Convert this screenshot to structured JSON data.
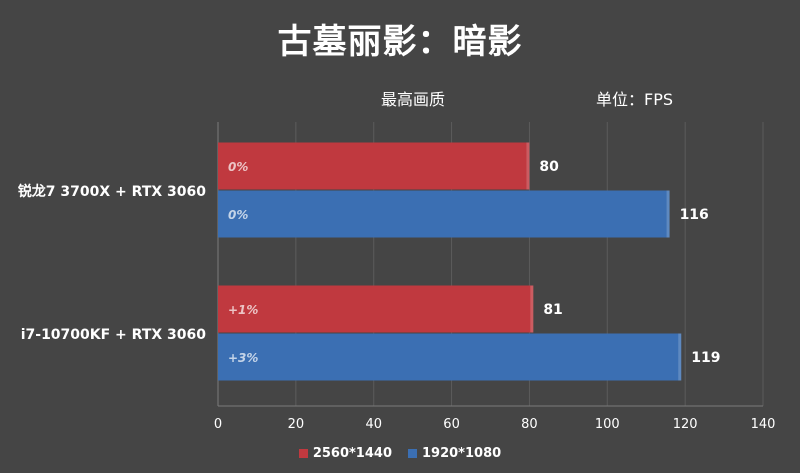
{
  "chart_data": {
    "type": "bar",
    "orientation": "horizontal",
    "title": "古墓丽影：暗影",
    "subtitle_left": "最高画质",
    "subtitle_right": "单位：FPS",
    "categories": [
      "锐龙7 3700X + RTX 3060",
      "i7-10700KF + RTX 3060"
    ],
    "series": [
      {
        "name": "2560*1440",
        "color": "#c0393f",
        "values": [
          80,
          81
        ],
        "bar_labels": [
          "0%",
          "+1%"
        ]
      },
      {
        "name": "1920*1080",
        "color": "#3b6fb3",
        "values": [
          116,
          119
        ],
        "bar_labels": [
          "0%",
          "+3%"
        ]
      }
    ],
    "xlim": [
      0,
      140
    ],
    "xticks": [
      0,
      20,
      40,
      60,
      80,
      100,
      120,
      140
    ],
    "grid": true,
    "legend_position": "bottom"
  }
}
